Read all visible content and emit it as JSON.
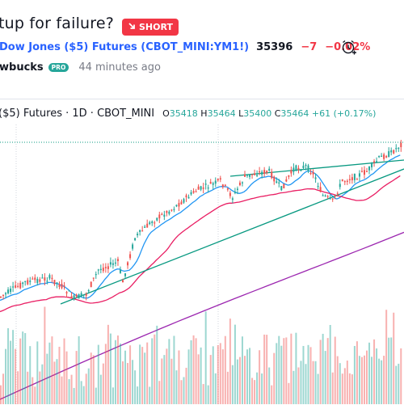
{
  "idea": {
    "title": "tup for failure?",
    "badge": {
      "label": "SHORT",
      "icon": "arrow-down-right-icon",
      "color": "#f23645"
    }
  },
  "symbol": {
    "name": "Dow Jones ($5) Futures (CBOT_MINI:YM1!)",
    "price": "35396",
    "change": "−7",
    "change_pct": "−0.02%",
    "neg_color": "#f23645",
    "alert_icon": "alarm-clock-plus-icon"
  },
  "author": {
    "name": "wbucks",
    "badge": "PRO",
    "badge_color": "#26a69a",
    "time": "44 minutes ago"
  },
  "legend": {
    "title": "($5) Futures · 1D · CBOT_MINI",
    "o_key": "O",
    "o": "35418",
    "h_key": "H",
    "h": "35464",
    "l_key": "L",
    "l": "35400",
    "c_key": "C",
    "c": "35464",
    "change": "+61 (+0.17%)",
    "up_color": "#26a69a",
    "down_color": "#ef5350"
  },
  "chart_data": {
    "type": "candlestick",
    "last_close": 35464,
    "colors": {
      "ma_fast": "#2196f3",
      "ma_mid": "#e91e63",
      "ma_slow": "#9c27b0",
      "trendline": "#089981",
      "up": "#26a69a",
      "down": "#ef5350"
    },
    "series": [
      {
        "name": "MA fast"
      },
      {
        "name": "MA mid"
      },
      {
        "name": "MA slow"
      }
    ]
  }
}
